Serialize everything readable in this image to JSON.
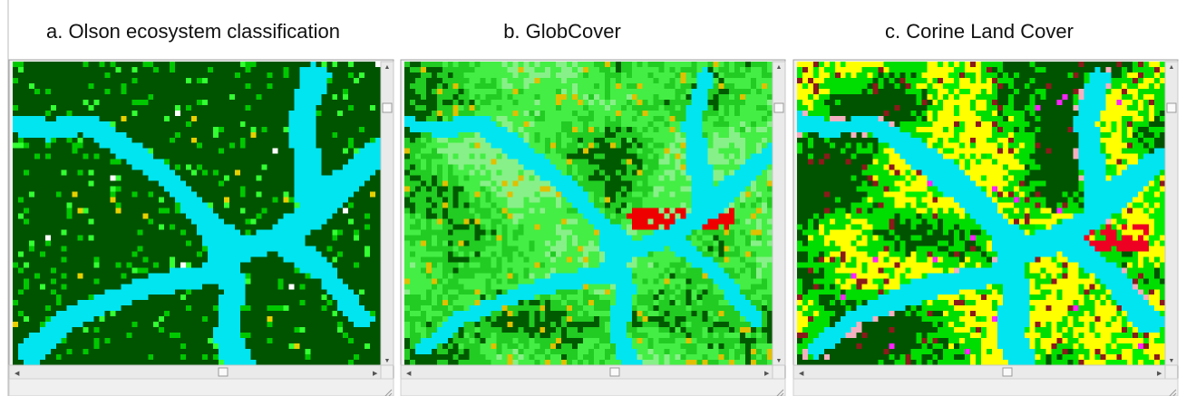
{
  "panels": [
    {
      "title": "a. Olson ecosystem classification"
    },
    {
      "title": "b. GlobCover"
    },
    {
      "title": "c. Corine Land Cover"
    }
  ]
}
